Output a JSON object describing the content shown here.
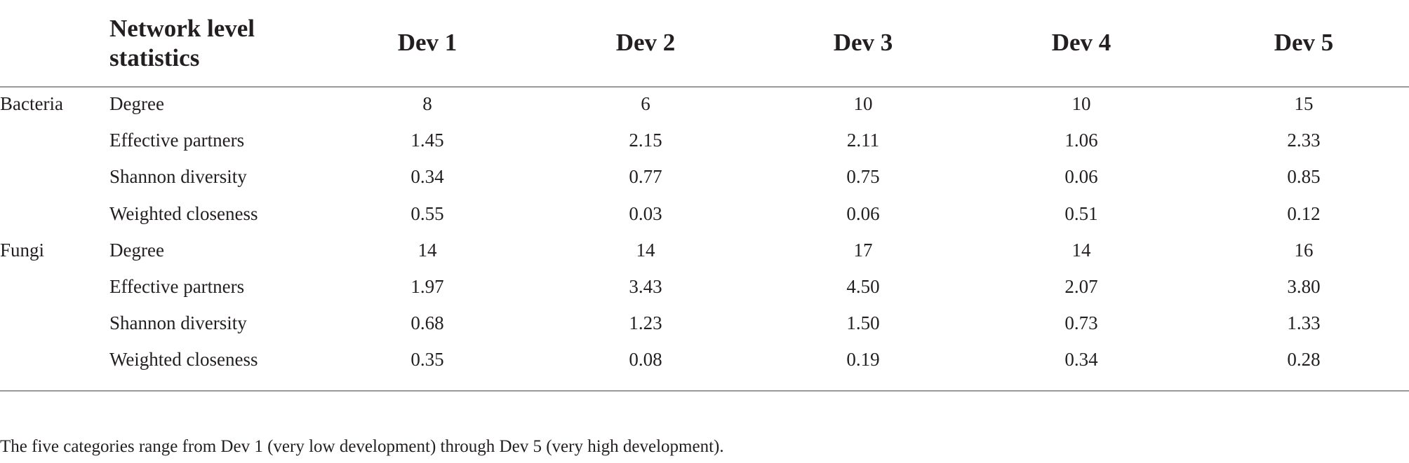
{
  "header": {
    "stat_label": "Network level statistics",
    "devs": [
      "Dev 1",
      "Dev 2",
      "Dev 3",
      "Dev 4",
      "Dev 5"
    ]
  },
  "rows": [
    {
      "group": "Bacteria",
      "stat": "Degree",
      "values": [
        "8",
        "6",
        "10",
        "10",
        "15"
      ]
    },
    {
      "group": "",
      "stat": "Effective partners",
      "values": [
        "1.45",
        "2.15",
        "2.11",
        "1.06",
        "2.33"
      ]
    },
    {
      "group": "",
      "stat": "Shannon diversity",
      "values": [
        "0.34",
        "0.77",
        "0.75",
        "0.06",
        "0.85"
      ]
    },
    {
      "group": "",
      "stat": "Weighted closeness",
      "values": [
        "0.55",
        "0.03",
        "0.06",
        "0.51",
        "0.12"
      ]
    },
    {
      "group": "Fungi",
      "stat": "Degree",
      "values": [
        "14",
        "14",
        "17",
        "14",
        "16"
      ]
    },
    {
      "group": "",
      "stat": "Effective partners",
      "values": [
        "1.97",
        "3.43",
        "4.50",
        "2.07",
        "3.80"
      ]
    },
    {
      "group": "",
      "stat": "Shannon diversity",
      "values": [
        "0.68",
        "1.23",
        "1.50",
        "0.73",
        "1.33"
      ]
    },
    {
      "group": "",
      "stat": "Weighted closeness",
      "values": [
        "0.35",
        "0.08",
        "0.19",
        "0.34",
        "0.28"
      ]
    }
  ],
  "footnote": "The five categories range from Dev 1 (very low development) through Dev 5 (very high development)."
}
